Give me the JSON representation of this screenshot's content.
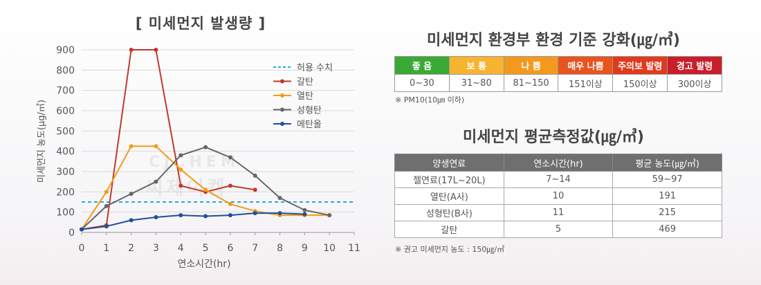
{
  "chart_title": "[ 미세먼지 발생량 ]",
  "colors": {
    "allowed": "#2aa7d8",
    "galtan": "#c0392b",
    "yeoltan": "#f39c12",
    "seonghyeongtan": "#666666",
    "metanol": "#1f4e9b",
    "axis_text": "#555555",
    "grid": "#d9d9d9"
  },
  "chart_data": {
    "type": "line",
    "xlabel": "연소시간(hr)",
    "ylabel": "미세먼지 농도(μg/㎥)",
    "xlim": [
      0,
      11
    ],
    "ylim": [
      0,
      900
    ],
    "x_ticks": [
      "0",
      "1",
      "2",
      "3",
      "4",
      "5",
      "6",
      "7",
      "8",
      "9",
      "10",
      "11"
    ],
    "y_ticks": [
      "0",
      "100",
      "200",
      "300",
      "400",
      "500",
      "600",
      "700",
      "800",
      "900"
    ],
    "grid": "horizontal",
    "legend_position": "right",
    "reference_line": {
      "name": "허용 수치",
      "value": 150,
      "style": "dashed"
    },
    "series": [
      {
        "name": "갈탄",
        "x": [
          0,
          1,
          2,
          3,
          4,
          5,
          6,
          7
        ],
        "values": [
          15,
          35,
          900,
          900,
          230,
          200,
          230,
          210
        ]
      },
      {
        "name": "열탄",
        "x": [
          0,
          1,
          2,
          3,
          4,
          5,
          6,
          7,
          8,
          9,
          10
        ],
        "values": [
          15,
          200,
          425,
          425,
          310,
          210,
          140,
          105,
          85,
          85,
          85
        ]
      },
      {
        "name": "성형탄",
        "x": [
          0,
          1,
          2,
          3,
          4,
          5,
          6,
          7,
          8,
          9,
          10
        ],
        "values": [
          15,
          130,
          190,
          250,
          380,
          420,
          370,
          280,
          170,
          110,
          85
        ]
      },
      {
        "name": "메탄올",
        "x": [
          0,
          1,
          2,
          3,
          4,
          5,
          6,
          7,
          8,
          9
        ],
        "values": [
          15,
          30,
          60,
          75,
          85,
          80,
          85,
          95,
          95,
          90
        ]
      }
    ]
  },
  "standards": {
    "title": "미세먼지 환경부 환경 기준 강화(㎍/㎥)",
    "grades": [
      {
        "label": "좋 음",
        "range": "0~30",
        "color": "#3aa935"
      },
      {
        "label": "보 통",
        "range": "31~80",
        "color": "#f7b431"
      },
      {
        "label": "나 쁨",
        "range": "81~150",
        "color": "#f39a1e"
      },
      {
        "label": "매우 나쁨",
        "range": "151이상",
        "color": "#e8541e"
      },
      {
        "label": "주의보 발령",
        "range": "150이상",
        "color": "#e03a1d"
      },
      {
        "label": "경고 발령",
        "range": "300이상",
        "color": "#c91f2b"
      }
    ],
    "note": "※ PM10(10㎛ 이하)"
  },
  "averages": {
    "title": "미세먼지 평균측정값(㎍/㎥)",
    "headers": [
      "양생연료",
      "연소시간(hr)",
      "평균 농도(㎍/㎥)"
    ],
    "rows": [
      [
        "젤연료(17L~20L)",
        "7~14",
        "59~97"
      ],
      [
        "열탄(A사)",
        "10",
        "191"
      ],
      [
        "성형탄(B사)",
        "11",
        "215"
      ],
      [
        "갈탄",
        "5",
        "469"
      ]
    ],
    "note": "※ 권고 미세먼지 농도 : 150㎍/㎥"
  },
  "watermark": {
    "en": "CJCHEM",
    "ko": "씨제이켐"
  }
}
